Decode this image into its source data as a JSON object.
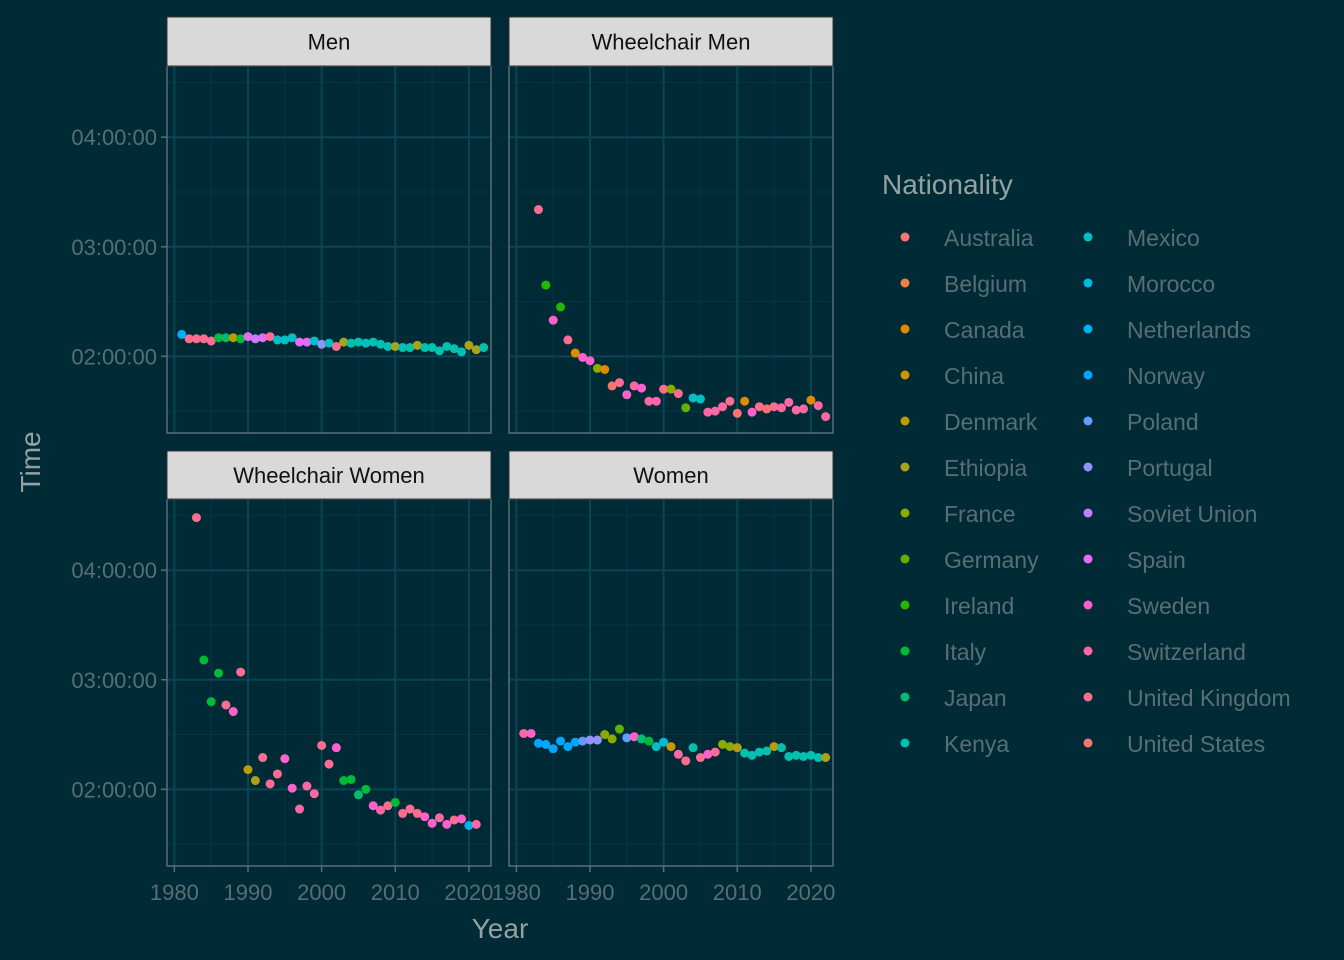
{
  "chart_data": {
    "type": "scatter",
    "xlabel": "Year",
    "ylabel": "Time",
    "x_ticks": [
      "1980",
      "1990",
      "2000",
      "2010",
      "2020"
    ],
    "x_tick_values": [
      1980,
      1990,
      2000,
      2010,
      2020
    ],
    "xlim": [
      1979,
      2023
    ],
    "y_ticks": [
      "02:00:00",
      "03:00:00",
      "04:00:00"
    ],
    "y_tick_values_hours": [
      2,
      3,
      4
    ],
    "ylim_hours": [
      1.3,
      4.65
    ],
    "grid": true,
    "legend_position": "right",
    "legend": {
      "title": "Nationality",
      "entries": [
        {
          "name": "Australia",
          "color": "#F8766D"
        },
        {
          "name": "Belgium",
          "color": "#EE8043"
        },
        {
          "name": "Canada",
          "color": "#E18A00"
        },
        {
          "name": "China",
          "color": "#CD9600"
        },
        {
          "name": "Denmark",
          "color": "#BE9C00"
        },
        {
          "name": "Ethiopia",
          "color": "#AAA219"
        },
        {
          "name": "France",
          "color": "#8CAB00"
        },
        {
          "name": "Germany",
          "color": "#5EB300"
        },
        {
          "name": "Ireland",
          "color": "#24B700"
        },
        {
          "name": "Italy",
          "color": "#00BA38"
        },
        {
          "name": "Japan",
          "color": "#00BE70"
        },
        {
          "name": "Kenya",
          "color": "#00C0AF"
        },
        {
          "name": "Mexico",
          "color": "#00BFC4"
        },
        {
          "name": "Morocco",
          "color": "#00BAE0"
        },
        {
          "name": "Netherlands",
          "color": "#00B0F6"
        },
        {
          "name": "Norway",
          "color": "#00A5FF"
        },
        {
          "name": "Poland",
          "color": "#619CFF"
        },
        {
          "name": "Portugal",
          "color": "#9590FF"
        },
        {
          "name": "Soviet Union",
          "color": "#C77CFF"
        },
        {
          "name": "Spain",
          "color": "#E76BF3"
        },
        {
          "name": "Sweden",
          "color": "#FF61CC"
        },
        {
          "name": "Switzerland",
          "color": "#FF67A4"
        },
        {
          "name": "United Kingdom",
          "color": "#FF6C91"
        },
        {
          "name": "United States",
          "color": "#F8766D"
        }
      ]
    },
    "panels": [
      {
        "title": "Men",
        "points": [
          [
            1981,
            2.2,
            "Netherlands"
          ],
          [
            1982,
            2.16,
            "United Kingdom"
          ],
          [
            1983,
            2.16,
            "United Kingdom"
          ],
          [
            1984,
            2.16,
            "United Kingdom"
          ],
          [
            1985,
            2.14,
            "United Kingdom"
          ],
          [
            1986,
            2.17,
            "Italy"
          ],
          [
            1987,
            2.17,
            "Japan"
          ],
          [
            1988,
            2.17,
            "Denmark"
          ],
          [
            1989,
            2.16,
            "Italy"
          ],
          [
            1990,
            2.18,
            "Spain"
          ],
          [
            1991,
            2.16,
            "Soviet Union"
          ],
          [
            1992,
            2.17,
            "Spain"
          ],
          [
            1993,
            2.18,
            "United Kingdom"
          ],
          [
            1994,
            2.15,
            "Mexico"
          ],
          [
            1995,
            2.15,
            "Mexico"
          ],
          [
            1996,
            2.17,
            "Mexico"
          ],
          [
            1997,
            2.13,
            "Spain"
          ],
          [
            1998,
            2.13,
            "Spain"
          ],
          [
            1999,
            2.14,
            "Mexico"
          ],
          [
            2000,
            2.11,
            "Portugal"
          ],
          [
            2001,
            2.12,
            "Mexico"
          ],
          [
            2002,
            2.09,
            "United Kingdom"
          ],
          [
            2003,
            2.13,
            "Ethiopia"
          ],
          [
            2004,
            2.12,
            "Kenya"
          ],
          [
            2005,
            2.13,
            "Kenya"
          ],
          [
            2006,
            2.12,
            "Mexico"
          ],
          [
            2007,
            2.13,
            "Kenya"
          ],
          [
            2008,
            2.11,
            "Kenya"
          ],
          [
            2009,
            2.09,
            "Kenya"
          ],
          [
            2010,
            2.09,
            "Ethiopia"
          ],
          [
            2011,
            2.08,
            "Kenya"
          ],
          [
            2012,
            2.08,
            "Kenya"
          ],
          [
            2013,
            2.1,
            "Ethiopia"
          ],
          [
            2014,
            2.08,
            "Kenya"
          ],
          [
            2015,
            2.08,
            "Kenya"
          ],
          [
            2016,
            2.05,
            "Kenya"
          ],
          [
            2017,
            2.09,
            "Kenya"
          ],
          [
            2018,
            2.07,
            "Kenya"
          ],
          [
            2019,
            2.04,
            "Kenya"
          ],
          [
            2020,
            2.1,
            "Ethiopia"
          ],
          [
            2021,
            2.06,
            "Ethiopia"
          ],
          [
            2022,
            2.08,
            "Kenya"
          ]
        ]
      },
      {
        "title": "Wheelchair Men",
        "points": [
          [
            1983,
            3.34,
            "United Kingdom"
          ],
          [
            1984,
            2.65,
            "Ireland"
          ],
          [
            1985,
            2.33,
            "Sweden"
          ],
          [
            1986,
            2.45,
            "Ireland"
          ],
          [
            1987,
            2.15,
            "United Kingdom"
          ],
          [
            1988,
            2.03,
            "Canada"
          ],
          [
            1989,
            1.99,
            "Sweden"
          ],
          [
            1990,
            1.96,
            "Sweden"
          ],
          [
            1991,
            1.89,
            "France"
          ],
          [
            1992,
            1.88,
            "Canada"
          ],
          [
            1993,
            1.73,
            "Australia"
          ],
          [
            1994,
            1.76,
            "United Kingdom"
          ],
          [
            1995,
            1.65,
            "Sweden"
          ],
          [
            1996,
            1.73,
            "Switzerland"
          ],
          [
            1997,
            1.71,
            "Sweden"
          ],
          [
            1998,
            1.59,
            "Switzerland"
          ],
          [
            1999,
            1.59,
            "Switzerland"
          ],
          [
            2000,
            1.7,
            "United Kingdom"
          ],
          [
            2001,
            1.7,
            "France"
          ],
          [
            2002,
            1.66,
            "United Kingdom"
          ],
          [
            2003,
            1.53,
            "Germany"
          ],
          [
            2004,
            1.62,
            "Mexico"
          ],
          [
            2005,
            1.61,
            "Mexico"
          ],
          [
            2006,
            1.49,
            "Switzerland"
          ],
          [
            2007,
            1.5,
            "Switzerland"
          ],
          [
            2008,
            1.54,
            "Switzerland"
          ],
          [
            2009,
            1.59,
            "United Kingdom"
          ],
          [
            2010,
            1.48,
            "Australia"
          ],
          [
            2011,
            1.59,
            "Canada"
          ],
          [
            2012,
            1.49,
            "Sweden"
          ],
          [
            2013,
            1.54,
            "United Kingdom"
          ],
          [
            2014,
            1.52,
            "Australia"
          ],
          [
            2015,
            1.54,
            "United Kingdom"
          ],
          [
            2016,
            1.53,
            "Switzerland"
          ],
          [
            2017,
            1.58,
            "Switzerland"
          ],
          [
            2018,
            1.51,
            "Switzerland"
          ],
          [
            2019,
            1.52,
            "Switzerland"
          ],
          [
            2020,
            1.6,
            "Canada"
          ],
          [
            2021,
            1.55,
            "Switzerland"
          ],
          [
            2022,
            1.45,
            "Switzerland"
          ]
        ]
      },
      {
        "title": "Wheelchair Women",
        "points": [
          [
            1983,
            4.48,
            "United Kingdom"
          ],
          [
            1984,
            3.18,
            "Italy"
          ],
          [
            1985,
            2.8,
            "Italy"
          ],
          [
            1986,
            3.06,
            "Italy"
          ],
          [
            1987,
            2.77,
            "United Kingdom"
          ],
          [
            1988,
            2.71,
            "Sweden"
          ],
          [
            1989,
            3.07,
            "United Kingdom"
          ],
          [
            1990,
            2.18,
            "Denmark"
          ],
          [
            1991,
            2.08,
            "Ethiopia"
          ],
          [
            1992,
            2.29,
            "United Kingdom"
          ],
          [
            1993,
            2.05,
            "United Kingdom"
          ],
          [
            1994,
            2.14,
            "United Kingdom"
          ],
          [
            1995,
            2.28,
            "Sweden"
          ],
          [
            1996,
            2.01,
            "Sweden"
          ],
          [
            1997,
            1.82,
            "Switzerland"
          ],
          [
            1998,
            2.03,
            "Switzerland"
          ],
          [
            1999,
            1.96,
            "Switzerland"
          ],
          [
            2000,
            2.4,
            "United Kingdom"
          ],
          [
            2001,
            2.23,
            "United Kingdom"
          ],
          [
            2002,
            2.38,
            "Sweden"
          ],
          [
            2003,
            2.08,
            "Italy"
          ],
          [
            2004,
            2.09,
            "Italy"
          ],
          [
            2005,
            1.95,
            "Japan"
          ],
          [
            2006,
            2.0,
            "Italy"
          ],
          [
            2007,
            1.85,
            "Sweden"
          ],
          [
            2008,
            1.81,
            "Switzerland"
          ],
          [
            2009,
            1.85,
            "United Kingdom"
          ],
          [
            2010,
            1.88,
            "Italy"
          ],
          [
            2011,
            1.78,
            "United Kingdom"
          ],
          [
            2012,
            1.82,
            "United Kingdom"
          ],
          [
            2013,
            1.78,
            "United Kingdom"
          ],
          [
            2014,
            1.75,
            "Sweden"
          ],
          [
            2015,
            1.69,
            "Sweden"
          ],
          [
            2016,
            1.74,
            "Switzerland"
          ],
          [
            2017,
            1.68,
            "Sweden"
          ],
          [
            2018,
            1.72,
            "United Kingdom"
          ],
          [
            2019,
            1.73,
            "Sweden"
          ],
          [
            2020,
            1.67,
            "Netherlands"
          ],
          [
            2021,
            1.68,
            "Switzerland"
          ]
        ]
      },
      {
        "title": "Women",
        "points": [
          [
            1981,
            2.51,
            "Switzerland"
          ],
          [
            1982,
            2.51,
            "Sweden"
          ],
          [
            1983,
            2.42,
            "Norway"
          ],
          [
            1984,
            2.41,
            "Norway"
          ],
          [
            1985,
            2.37,
            "Norway"
          ],
          [
            1986,
            2.44,
            "Norway"
          ],
          [
            1987,
            2.39,
            "Norway"
          ],
          [
            1988,
            2.43,
            "Norway"
          ],
          [
            1989,
            2.44,
            "Poland"
          ],
          [
            1990,
            2.45,
            "Portugal"
          ],
          [
            1991,
            2.45,
            "Portugal"
          ],
          [
            1992,
            2.5,
            "France"
          ],
          [
            1993,
            2.46,
            "France"
          ],
          [
            1994,
            2.55,
            "Germany"
          ],
          [
            1995,
            2.47,
            "Poland"
          ],
          [
            1996,
            2.48,
            "Sweden"
          ],
          [
            1997,
            2.46,
            "Japan"
          ],
          [
            1998,
            2.44,
            "Italy"
          ],
          [
            1999,
            2.39,
            "Mexico"
          ],
          [
            2000,
            2.43,
            "Morocco"
          ],
          [
            2001,
            2.39,
            "China"
          ],
          [
            2002,
            2.32,
            "Switzerland"
          ],
          [
            2003,
            2.26,
            "United Kingdom"
          ],
          [
            2004,
            2.38,
            "Kenya"
          ],
          [
            2005,
            2.29,
            "United Kingdom"
          ],
          [
            2006,
            2.32,
            "Sweden"
          ],
          [
            2007,
            2.34,
            "United Kingdom"
          ],
          [
            2008,
            2.41,
            "France"
          ],
          [
            2009,
            2.39,
            "France"
          ],
          [
            2010,
            2.38,
            "Ethiopia"
          ],
          [
            2011,
            2.33,
            "Kenya"
          ],
          [
            2012,
            2.31,
            "Kenya"
          ],
          [
            2013,
            2.34,
            "Kenya"
          ],
          [
            2014,
            2.35,
            "Kenya"
          ],
          [
            2015,
            2.39,
            "Denmark"
          ],
          [
            2016,
            2.38,
            "Kenya"
          ],
          [
            2017,
            2.3,
            "Kenya"
          ],
          [
            2018,
            2.31,
            "Kenya"
          ],
          [
            2019,
            2.3,
            "Kenya"
          ],
          [
            2020,
            2.31,
            "Kenya"
          ],
          [
            2021,
            2.29,
            "Kenya"
          ],
          [
            2022,
            2.29,
            "Ethiopia"
          ]
        ]
      }
    ]
  }
}
